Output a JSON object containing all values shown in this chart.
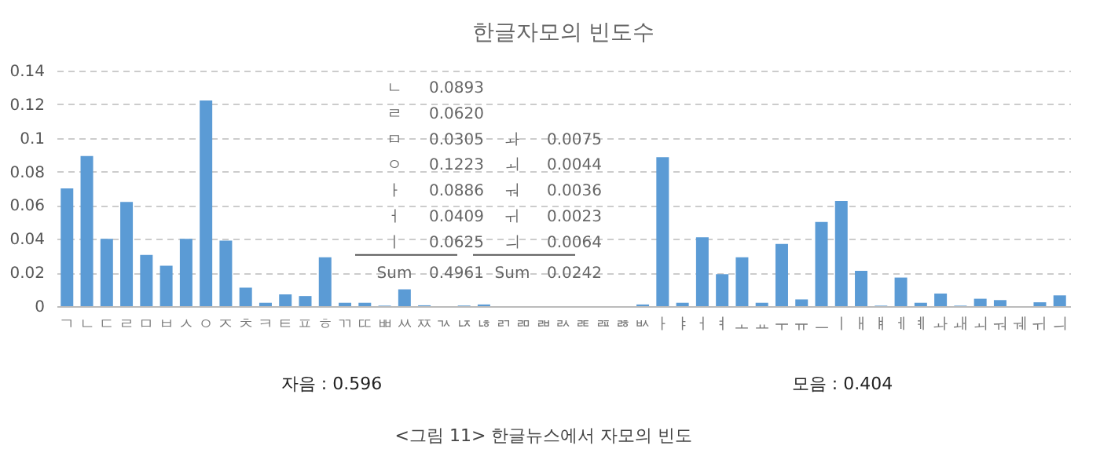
{
  "chart_data": {
    "type": "bar",
    "title": "한글자모의 빈도수",
    "categories": [
      "ㄱ",
      "ㄴ",
      "ㄷ",
      "ㄹ",
      "ㅁ",
      "ㅂ",
      "ㅅ",
      "ㅇ",
      "ㅈ",
      "ㅊ",
      "ㅋ",
      "ㅌ",
      "ㅍ",
      "ㅎ",
      "ㄲ",
      "ㄸ",
      "ㅃ",
      "ㅆ",
      "ㅉ",
      "ㄳ",
      "ㄵ",
      "ㄶ",
      "ㄺ",
      "ㄻ",
      "ㄼ",
      "ㄽ",
      "ㄾ",
      "ㄿ",
      "ㅀ",
      "ㅄ",
      "ㅏ",
      "ㅑ",
      "ㅓ",
      "ㅕ",
      "ㅗ",
      "ㅛ",
      "ㅜ",
      "ㅠ",
      "ㅡ",
      "ㅣ",
      "ㅐ",
      "ㅒ",
      "ㅔ",
      "ㅖ",
      "ㅘ",
      "ㅙ",
      "ㅚ",
      "ㅝ",
      "ㅞ",
      "ㅟ",
      "ㅢ"
    ],
    "values": [
      0.07,
      0.0893,
      0.04,
      0.062,
      0.0305,
      0.024,
      0.04,
      0.1223,
      0.039,
      0.011,
      0.002,
      0.007,
      0.006,
      0.029,
      0.002,
      0.002,
      0.0003,
      0.01,
      0.0005,
      0,
      0.0003,
      0.001,
      0,
      0,
      0,
      0,
      0,
      0,
      0,
      0.001,
      0.0886,
      0.002,
      0.0409,
      0.019,
      0.029,
      0.002,
      0.037,
      0.004,
      0.05,
      0.0625,
      0.021,
      0.0003,
      0.017,
      0.002,
      0.0075,
      0.0003,
      0.0044,
      0.0036,
      0,
      0.0023,
      0.0064
    ],
    "color": "#5b9bd5",
    "ylim": [
      0,
      0.14
    ],
    "yticks": [
      0,
      0.02,
      0.04,
      0.06,
      0.08,
      0.1,
      0.12,
      0.14
    ],
    "grid": "y",
    "annotations": [
      "ㄴ 0.0893",
      "ㄹ 0.0620",
      "ㅁ 0.0305",
      "ㅇ 0.1223",
      "ㅏ 0.0886",
      "ㅓ 0.0409",
      "ㅣ 0.0625",
      "Sum 0.4961",
      "ㅘ 0.0075",
      "ㅚ 0.0044",
      "ㅝ 0.0036",
      "ㅟ 0.0023",
      "ㅢ 0.0064",
      "Sum 0.0242",
      "자음 : 0.596",
      "모음 : 0.404",
      "<그림 11> 한글뉴스에서 자모의 빈도"
    ]
  }
}
